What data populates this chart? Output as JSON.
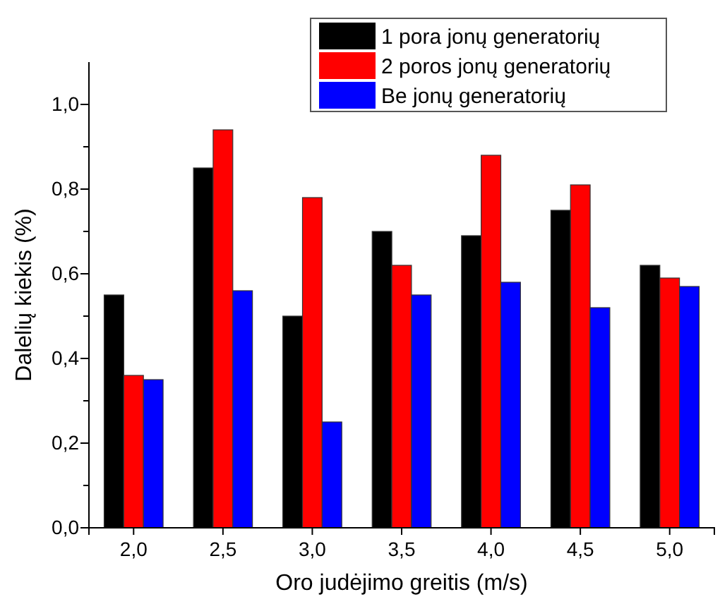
{
  "chart_data": {
    "type": "bar",
    "xlabel": "Oro judėjimo greitis (m/s)",
    "ylabel": "Dalelių kiekis (%)",
    "categories": [
      "2,0",
      "2,5",
      "3,0",
      "3,5",
      "4,0",
      "4,5",
      "5,0"
    ],
    "series": [
      {
        "name": "1 pora jonų generatorių",
        "color": "#000000",
        "values": [
          0.55,
          0.85,
          0.5,
          0.7,
          0.69,
          0.75,
          0.62
        ]
      },
      {
        "name": "2 poros jonų generatorių",
        "color": "#ff0000",
        "values": [
          0.36,
          0.94,
          0.78,
          0.62,
          0.88,
          0.81,
          0.59
        ]
      },
      {
        "name": "Be jonų generatorių",
        "color": "#0000ff",
        "values": [
          0.35,
          0.56,
          0.25,
          0.55,
          0.58,
          0.52,
          0.57
        ]
      }
    ],
    "ylim": [
      0,
      1.1
    ],
    "yticks": [
      {
        "value": 0,
        "label": "0,0"
      },
      {
        "value": 0.1,
        "label": null
      },
      {
        "value": 0.2,
        "label": "0,2"
      },
      {
        "value": 0.3,
        "label": null
      },
      {
        "value": 0.4,
        "label": "0,4"
      },
      {
        "value": 0.5,
        "label": null
      },
      {
        "value": 0.6,
        "label": "0,6"
      },
      {
        "value": 0.7,
        "label": null
      },
      {
        "value": 0.8,
        "label": "0,8"
      },
      {
        "value": 0.9,
        "label": null
      },
      {
        "value": 1.0,
        "label": "1,0"
      }
    ],
    "legend": "top right",
    "grid": false
  }
}
